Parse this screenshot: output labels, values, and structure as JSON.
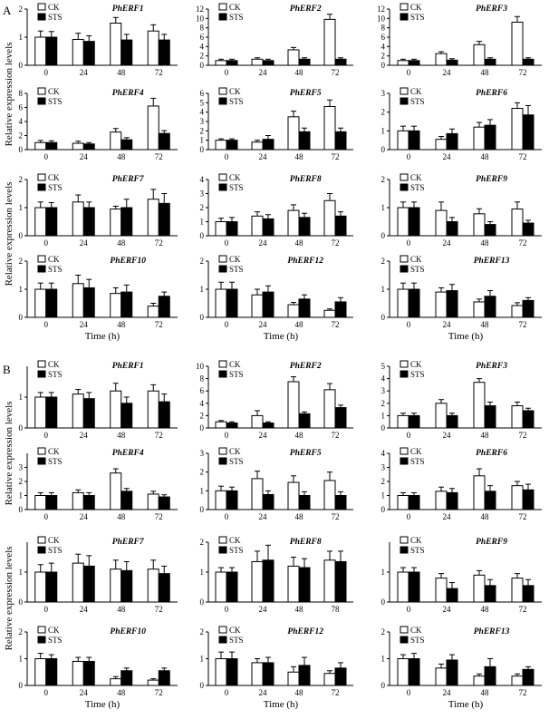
{
  "figure": {
    "panel_labels": [
      "A",
      "B"
    ],
    "ylabel": "Relative expression levels",
    "xlabel": "Time (h)",
    "legend": [
      "CK",
      "STS"
    ]
  },
  "chart_data": [
    {
      "panel": "A",
      "type": "bar",
      "title": "PhERF1",
      "categories": [
        "0",
        "24",
        "48",
        "72"
      ],
      "ylim": [
        0,
        2
      ],
      "yticks": [
        0,
        1,
        2
      ],
      "series": [
        {
          "name": "CK",
          "values": [
            1.0,
            0.92,
            1.5,
            1.22
          ],
          "errors": [
            0.22,
            0.22,
            0.2,
            0.22
          ]
        },
        {
          "name": "STS",
          "values": [
            1.0,
            0.85,
            0.9,
            0.9
          ],
          "errors": [
            0.2,
            0.2,
            0.2,
            0.2
          ]
        }
      ]
    },
    {
      "panel": "A",
      "type": "bar",
      "title": "PhERF2",
      "categories": [
        "0",
        "24",
        "48",
        "72"
      ],
      "ylim": [
        0,
        12
      ],
      "yticks": [
        0,
        2,
        4,
        6,
        8,
        10,
        12
      ],
      "series": [
        {
          "name": "CK",
          "values": [
            1.0,
            1.3,
            3.3,
            9.8
          ],
          "errors": [
            0.3,
            0.3,
            0.5,
            1.1
          ]
        },
        {
          "name": "STS",
          "values": [
            1.0,
            1.0,
            1.3,
            1.3
          ],
          "errors": [
            0.3,
            0.3,
            0.3,
            0.3
          ]
        }
      ]
    },
    {
      "panel": "A",
      "type": "bar",
      "title": "PhERF3",
      "categories": [
        "0",
        "24",
        "48",
        "72"
      ],
      "ylim": [
        0,
        12
      ],
      "yticks": [
        0,
        2,
        4,
        6,
        8,
        10,
        12
      ],
      "series": [
        {
          "name": "CK",
          "values": [
            1.0,
            2.5,
            4.4,
            9.2
          ],
          "errors": [
            0.3,
            0.4,
            0.7,
            1.2
          ]
        },
        {
          "name": "STS",
          "values": [
            1.0,
            1.1,
            1.3,
            1.3
          ],
          "errors": [
            0.3,
            0.3,
            0.3,
            0.3
          ]
        }
      ]
    },
    {
      "panel": "A",
      "type": "bar",
      "title": "PhERF4",
      "categories": [
        "0",
        "24",
        "48",
        "72"
      ],
      "ylim": [
        0,
        8
      ],
      "yticks": [
        0,
        2,
        4,
        6,
        8
      ],
      "series": [
        {
          "name": "CK",
          "values": [
            1.0,
            0.9,
            2.5,
            6.2
          ],
          "errors": [
            0.3,
            0.3,
            0.5,
            1.1
          ]
        },
        {
          "name": "STS",
          "values": [
            1.0,
            0.8,
            1.4,
            2.3
          ],
          "errors": [
            0.25,
            0.2,
            0.3,
            0.4
          ]
        }
      ]
    },
    {
      "panel": "A",
      "type": "bar",
      "title": "PhERF5",
      "categories": [
        "0",
        "24",
        "48",
        "72"
      ],
      "ylim": [
        0,
        6
      ],
      "yticks": [
        0,
        1,
        2,
        3,
        4,
        5,
        6
      ],
      "series": [
        {
          "name": "CK",
          "values": [
            1.0,
            0.8,
            3.5,
            4.6
          ],
          "errors": [
            0.15,
            0.2,
            0.6,
            0.7
          ]
        },
        {
          "name": "STS",
          "values": [
            1.0,
            1.1,
            1.9,
            1.9
          ],
          "errors": [
            0.15,
            0.4,
            0.4,
            0.4
          ]
        }
      ]
    },
    {
      "panel": "A",
      "type": "bar",
      "title": "PhERF6",
      "categories": [
        "0",
        "24",
        "48",
        "72"
      ],
      "ylim": [
        0,
        3
      ],
      "yticks": [
        0,
        1,
        2,
        3
      ],
      "series": [
        {
          "name": "CK",
          "values": [
            1.0,
            0.55,
            1.2,
            2.2
          ],
          "errors": [
            0.25,
            0.15,
            0.25,
            0.3
          ]
        },
        {
          "name": "STS",
          "values": [
            1.0,
            0.85,
            1.3,
            1.85
          ],
          "errors": [
            0.25,
            0.25,
            0.3,
            0.5
          ]
        }
      ]
    },
    {
      "panel": "A",
      "type": "bar",
      "title": "PhERF7",
      "categories": [
        "0",
        "24",
        "48",
        "72"
      ],
      "ylim": [
        0,
        2
      ],
      "yticks": [
        0,
        1,
        2
      ],
      "series": [
        {
          "name": "CK",
          "values": [
            1.0,
            1.2,
            0.95,
            1.3
          ],
          "errors": [
            0.2,
            0.25,
            0.1,
            0.35
          ]
        },
        {
          "name": "STS",
          "values": [
            1.0,
            1.0,
            1.0,
            1.15
          ],
          "errors": [
            0.18,
            0.2,
            0.3,
            0.35
          ]
        }
      ]
    },
    {
      "panel": "A",
      "type": "bar",
      "title": "PhERF8",
      "categories": [
        "0",
        "24",
        "48",
        "72"
      ],
      "ylim": [
        0,
        4
      ],
      "yticks": [
        0,
        1,
        2,
        3,
        4
      ],
      "series": [
        {
          "name": "CK",
          "values": [
            1.0,
            1.4,
            1.8,
            2.5
          ],
          "errors": [
            0.25,
            0.3,
            0.4,
            0.5
          ]
        },
        {
          "name": "STS",
          "values": [
            1.0,
            1.2,
            1.3,
            1.4
          ],
          "errors": [
            0.3,
            0.3,
            0.3,
            0.3
          ]
        }
      ]
    },
    {
      "panel": "A",
      "type": "bar",
      "title": "PhERF9",
      "categories": [
        "0",
        "24",
        "48",
        "72"
      ],
      "ylim": [
        0,
        2
      ],
      "yticks": [
        0,
        1,
        2
      ],
      "series": [
        {
          "name": "CK",
          "values": [
            1.0,
            0.9,
            0.78,
            0.95
          ],
          "errors": [
            0.2,
            0.3,
            0.18,
            0.25
          ]
        },
        {
          "name": "STS",
          "values": [
            1.0,
            0.5,
            0.4,
            0.45
          ],
          "errors": [
            0.2,
            0.15,
            0.1,
            0.1
          ]
        }
      ]
    },
    {
      "panel": "A",
      "type": "bar",
      "title": "PhERF10",
      "categories": [
        "0",
        "24",
        "48",
        "72"
      ],
      "ylim": [
        0,
        2
      ],
      "yticks": [
        0,
        1,
        2
      ],
      "series": [
        {
          "name": "CK",
          "values": [
            1.0,
            1.2,
            0.85,
            0.4
          ],
          "errors": [
            0.22,
            0.3,
            0.2,
            0.1
          ]
        },
        {
          "name": "STS",
          "values": [
            1.0,
            1.05,
            0.9,
            0.75
          ],
          "errors": [
            0.22,
            0.3,
            0.25,
            0.15
          ]
        }
      ]
    },
    {
      "panel": "A",
      "type": "bar",
      "title": "PhERF12",
      "categories": [
        "0",
        "24",
        "48",
        "72"
      ],
      "ylim": [
        0,
        2
      ],
      "yticks": [
        0,
        1,
        2
      ],
      "series": [
        {
          "name": "CK",
          "values": [
            1.0,
            0.8,
            0.45,
            0.25
          ],
          "errors": [
            0.25,
            0.2,
            0.08,
            0.05
          ]
        },
        {
          "name": "STS",
          "values": [
            1.0,
            0.9,
            0.65,
            0.55
          ],
          "errors": [
            0.25,
            0.22,
            0.15,
            0.15
          ]
        }
      ]
    },
    {
      "panel": "A",
      "type": "bar",
      "title": "PhERF13",
      "categories": [
        "0",
        "24",
        "48",
        "72"
      ],
      "ylim": [
        0,
        2
      ],
      "yticks": [
        0,
        1,
        2
      ],
      "series": [
        {
          "name": "CK",
          "values": [
            1.0,
            0.9,
            0.55,
            0.42
          ],
          "errors": [
            0.22,
            0.15,
            0.1,
            0.1
          ]
        },
        {
          "name": "STS",
          "values": [
            1.0,
            0.95,
            0.75,
            0.6
          ],
          "errors": [
            0.22,
            0.22,
            0.2,
            0.1
          ]
        }
      ]
    },
    {
      "panel": "B",
      "type": "bar",
      "title": "PhERF1",
      "categories": [
        "0",
        "24",
        "48",
        "72"
      ],
      "ylim": [
        0,
        2
      ],
      "yticks": [
        0,
        1
      ],
      "series": [
        {
          "name": "CK",
          "values": [
            1.0,
            1.1,
            1.2,
            1.2
          ],
          "errors": [
            0.15,
            0.15,
            0.25,
            0.2
          ]
        },
        {
          "name": "STS",
          "values": [
            1.0,
            0.95,
            0.8,
            0.85
          ],
          "errors": [
            0.15,
            0.2,
            0.2,
            0.25
          ]
        }
      ]
    },
    {
      "panel": "B",
      "type": "bar",
      "title": "PhERF2",
      "categories": [
        "0",
        "24",
        "48",
        "72"
      ],
      "ylim": [
        0,
        10
      ],
      "yticks": [
        0,
        2,
        4,
        6,
        8,
        10
      ],
      "series": [
        {
          "name": "CK",
          "values": [
            1.0,
            2.0,
            7.5,
            6.2
          ],
          "errors": [
            0.2,
            0.8,
            0.8,
            1.0
          ]
        },
        {
          "name": "STS",
          "values": [
            0.8,
            0.8,
            2.3,
            3.3
          ],
          "errors": [
            0.2,
            0.2,
            0.3,
            0.4
          ]
        }
      ]
    },
    {
      "panel": "B",
      "type": "bar",
      "title": "PhERF3",
      "categories": [
        "0",
        "24",
        "48",
        "72"
      ],
      "ylim": [
        0,
        5
      ],
      "yticks": [
        0,
        1,
        2,
        3,
        4,
        5
      ],
      "series": [
        {
          "name": "CK",
          "values": [
            1.0,
            2.0,
            3.7,
            1.8
          ],
          "errors": [
            0.2,
            0.3,
            0.3,
            0.3
          ]
        },
        {
          "name": "STS",
          "values": [
            1.0,
            1.0,
            1.8,
            1.4
          ],
          "errors": [
            0.2,
            0.2,
            0.3,
            0.2
          ]
        }
      ]
    },
    {
      "panel": "B",
      "type": "bar",
      "title": "PhERF4",
      "categories": [
        "0",
        "24",
        "48",
        "72"
      ],
      "ylim": [
        0,
        4
      ],
      "yticks": [
        0,
        1,
        2,
        3
      ],
      "series": [
        {
          "name": "CK",
          "values": [
            1.0,
            1.2,
            2.6,
            1.1
          ],
          "errors": [
            0.2,
            0.2,
            0.3,
            0.2
          ]
        },
        {
          "name": "STS",
          "values": [
            1.0,
            1.0,
            1.3,
            0.9
          ],
          "errors": [
            0.2,
            0.2,
            0.2,
            0.15
          ]
        }
      ]
    },
    {
      "panel": "B",
      "type": "bar",
      "title": "PhERF5",
      "categories": [
        "0",
        "24",
        "48",
        "72"
      ],
      "ylim": [
        0,
        3
      ],
      "yticks": [
        0,
        1,
        2,
        3
      ],
      "series": [
        {
          "name": "CK",
          "values": [
            1.0,
            1.65,
            1.45,
            1.55
          ],
          "errors": [
            0.25,
            0.4,
            0.35,
            0.45
          ]
        },
        {
          "name": "STS",
          "values": [
            1.0,
            0.8,
            0.75,
            0.75
          ],
          "errors": [
            0.2,
            0.2,
            0.2,
            0.2
          ]
        }
      ]
    },
    {
      "panel": "B",
      "type": "bar",
      "title": "PhERF6",
      "categories": [
        "0",
        "24",
        "48",
        "72"
      ],
      "ylim": [
        0,
        4
      ],
      "yticks": [
        0,
        1,
        2,
        3,
        4
      ],
      "series": [
        {
          "name": "CK",
          "values": [
            1.0,
            1.3,
            2.4,
            1.7
          ],
          "errors": [
            0.2,
            0.3,
            0.5,
            0.3
          ]
        },
        {
          "name": "STS",
          "values": [
            1.0,
            1.2,
            1.3,
            1.4
          ],
          "errors": [
            0.2,
            0.3,
            0.4,
            0.4
          ]
        }
      ]
    },
    {
      "panel": "B",
      "type": "bar",
      "title": "PhERF7",
      "categories": [
        "0",
        "24",
        "48",
        "72"
      ],
      "ylim": [
        0,
        2
      ],
      "yticks": [
        0,
        1
      ],
      "series": [
        {
          "name": "CK",
          "values": [
            1.0,
            1.3,
            1.1,
            1.1
          ],
          "errors": [
            0.25,
            0.3,
            0.3,
            0.3
          ]
        },
        {
          "name": "STS",
          "values": [
            1.0,
            1.2,
            1.05,
            0.95
          ],
          "errors": [
            0.3,
            0.35,
            0.3,
            0.25
          ]
        }
      ]
    },
    {
      "panel": "B",
      "type": "bar",
      "title": "PhERF8",
      "categories": [
        "0",
        "24",
        "48",
        "78"
      ],
      "ylim": [
        0,
        2
      ],
      "yticks": [
        0,
        1,
        2
      ],
      "series": [
        {
          "name": "CK",
          "values": [
            1.0,
            1.35,
            1.2,
            1.4
          ],
          "errors": [
            0.15,
            0.35,
            0.3,
            0.3
          ]
        },
        {
          "name": "STS",
          "values": [
            1.0,
            1.4,
            1.15,
            1.35
          ],
          "errors": [
            0.15,
            0.5,
            0.3,
            0.35
          ]
        }
      ]
    },
    {
      "panel": "B",
      "type": "bar",
      "title": "PhERF9",
      "categories": [
        "0",
        "24",
        "48",
        "72"
      ],
      "ylim": [
        0,
        2
      ],
      "yticks": [
        0,
        1
      ],
      "series": [
        {
          "name": "CK",
          "values": [
            1.0,
            0.8,
            0.9,
            0.8
          ],
          "errors": [
            0.15,
            0.15,
            0.15,
            0.15
          ]
        },
        {
          "name": "STS",
          "values": [
            1.0,
            0.45,
            0.55,
            0.55
          ],
          "errors": [
            0.15,
            0.2,
            0.2,
            0.2
          ]
        }
      ]
    },
    {
      "panel": "B",
      "type": "bar",
      "title": "PhERF10",
      "categories": [
        "0",
        "24",
        "48",
        "72"
      ],
      "ylim": [
        0,
        2
      ],
      "yticks": [
        0,
        1,
        2
      ],
      "series": [
        {
          "name": "CK",
          "values": [
            1.0,
            0.9,
            0.25,
            0.2
          ],
          "errors": [
            0.2,
            0.15,
            0.08,
            0.05
          ]
        },
        {
          "name": "STS",
          "values": [
            1.0,
            0.9,
            0.55,
            0.55
          ],
          "errors": [
            0.15,
            0.15,
            0.1,
            0.1
          ]
        }
      ]
    },
    {
      "panel": "B",
      "type": "bar",
      "title": "PhERF12",
      "categories": [
        "0",
        "24",
        "48",
        "72"
      ],
      "ylim": [
        0,
        2
      ],
      "yticks": [
        0,
        1,
        2
      ],
      "series": [
        {
          "name": "CK",
          "values": [
            1.0,
            0.85,
            0.5,
            0.45
          ],
          "errors": [
            0.25,
            0.15,
            0.2,
            0.1
          ]
        },
        {
          "name": "STS",
          "values": [
            1.0,
            0.85,
            0.75,
            0.65
          ],
          "errors": [
            0.25,
            0.2,
            0.3,
            0.2
          ]
        }
      ]
    },
    {
      "panel": "B",
      "type": "bar",
      "title": "PhERF13",
      "categories": [
        "0",
        "24",
        "48",
        "72"
      ],
      "ylim": [
        0,
        2
      ],
      "yticks": [
        0,
        1,
        2
      ],
      "series": [
        {
          "name": "CK",
          "values": [
            1.0,
            0.65,
            0.35,
            0.35
          ],
          "errors": [
            0.15,
            0.15,
            0.08,
            0.08
          ]
        },
        {
          "name": "STS",
          "values": [
            1.0,
            0.95,
            0.7,
            0.6
          ],
          "errors": [
            0.2,
            0.2,
            0.3,
            0.1
          ]
        }
      ]
    }
  ]
}
